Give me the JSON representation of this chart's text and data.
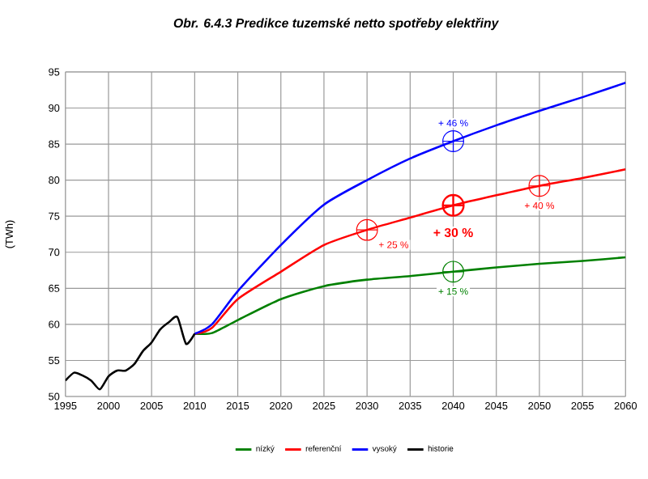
{
  "chart_data": {
    "type": "line",
    "title": "Obr. 6.4.3  Predikce tuzemské netto spotřeby elektřiny",
    "ylabel": "(TWh)",
    "xlim": [
      1995,
      2060
    ],
    "ylim": [
      50,
      95
    ],
    "xticks": [
      1995,
      2000,
      2005,
      2010,
      2015,
      2020,
      2025,
      2030,
      2035,
      2040,
      2045,
      2050,
      2055,
      2060
    ],
    "yticks": [
      50,
      55,
      60,
      65,
      70,
      75,
      80,
      85,
      90,
      95
    ],
    "grid": true,
    "legend": "bottom",
    "marker": "none",
    "line_style": "solid",
    "series": [
      {
        "name": "nízký",
        "color": "#008000",
        "x": [
          2010,
          2012,
          2015,
          2020,
          2025,
          2030,
          2035,
          2040,
          2045,
          2050,
          2055,
          2060
        ],
        "values": [
          58.7,
          58.8,
          60.6,
          63.5,
          65.3,
          66.2,
          66.7,
          67.3,
          67.9,
          68.4,
          68.8,
          69.3
        ]
      },
      {
        "name": "referenční",
        "color": "#ff0000",
        "x": [
          2010,
          2012,
          2015,
          2020,
          2025,
          2030,
          2035,
          2040,
          2045,
          2050,
          2055,
          2060
        ],
        "values": [
          58.7,
          59.5,
          63.5,
          67.3,
          71.0,
          73.1,
          74.8,
          76.5,
          77.9,
          79.2,
          80.3,
          81.5
        ]
      },
      {
        "name": "vysoký",
        "color": "#0000ff",
        "x": [
          2010,
          2012,
          2015,
          2020,
          2025,
          2030,
          2035,
          2040,
          2045,
          2050,
          2055,
          2060
        ],
        "values": [
          58.7,
          60.0,
          64.6,
          71.0,
          76.6,
          80.0,
          83.0,
          85.4,
          87.6,
          89.6,
          91.5,
          93.5
        ]
      },
      {
        "name": "historie",
        "color": "#000000",
        "x": [
          1995,
          1996,
          1997,
          1998,
          1999,
          2000,
          2001,
          2002,
          2003,
          2004,
          2005,
          2006,
          2007,
          2008,
          2009,
          2010
        ],
        "values": [
          52.2,
          53.3,
          52.9,
          52.2,
          51.0,
          52.8,
          53.6,
          53.6,
          54.5,
          56.3,
          57.5,
          59.3,
          60.3,
          61.0,
          57.3,
          58.7
        ]
      }
    ],
    "annotations": [
      {
        "text": "+ 46 %",
        "x": 2040,
        "y": 85.4
      },
      {
        "text": "+ 30 %",
        "x": 2040,
        "y": 76.5
      },
      {
        "text": "+ 25 %",
        "x": 2030,
        "y": 73.1
      },
      {
        "text": "+ 40 %",
        "x": 2050,
        "y": 79.2
      },
      {
        "text": "+ 15 %",
        "x": 2040,
        "y": 67.3
      }
    ]
  }
}
